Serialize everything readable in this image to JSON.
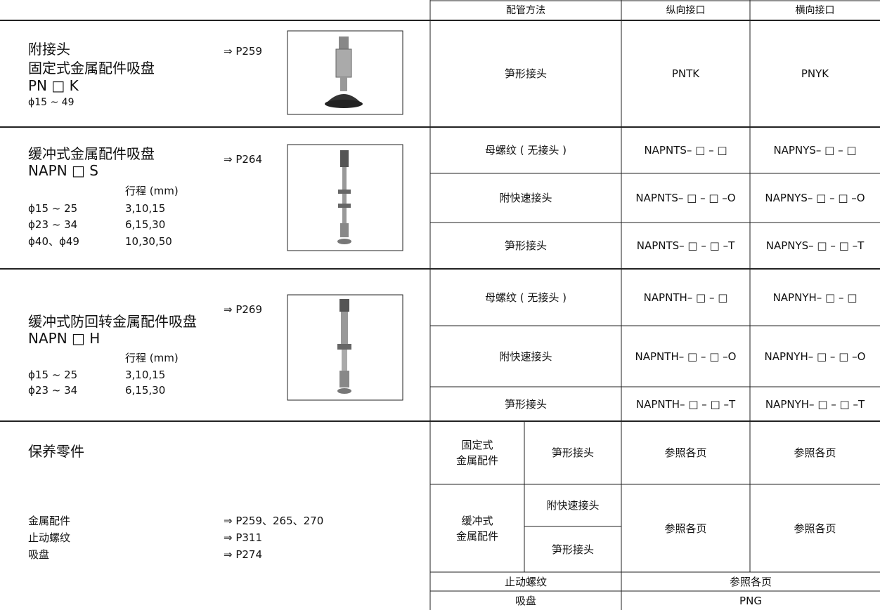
{
  "header": {
    "columns": [
      "配管方法",
      "纵向接口",
      "横向接口"
    ]
  },
  "sections": [
    {
      "title_lines": [
        "附接头",
        "固定式金属配件吸盘"
      ],
      "model": "PN □ K",
      "size": "ϕ15 ~ 49",
      "ref": "⇒ P259",
      "rows": [
        [
          "笋形接头",
          "PNTK",
          "PNYK"
        ]
      ]
    },
    {
      "title_lines": [
        "缓冲式金属配件吸盘"
      ],
      "model": "NAPN □ S",
      "stroke_header": "行程 (mm)",
      "strokes": [
        [
          "ϕ15 ~ 25",
          "3,10,15"
        ],
        [
          "ϕ23 ~ 34",
          "6,15,30"
        ],
        [
          "ϕ40、ϕ49",
          "10,30,50"
        ]
      ],
      "ref": "⇒ P264",
      "rows": [
        [
          "母螺纹 ( 无接头 )",
          "NAPNTS– □ – □",
          "NAPNYS– □ – □"
        ],
        [
          "附快速接头",
          "NAPNTS– □ – □ –O",
          "NAPNYS– □ – □ –O"
        ],
        [
          "笋形接头",
          "NAPNTS– □ – □ –T",
          "NAPNYS– □ – □ –T"
        ]
      ]
    },
    {
      "title_lines": [
        "缓冲式防回转金属配件吸盘"
      ],
      "model": "NAPN □ H",
      "stroke_header": "行程 (mm)",
      "strokes": [
        [
          "ϕ15 ~ 25",
          "3,10,15"
        ],
        [
          "ϕ23 ~ 34",
          "6,15,30"
        ]
      ],
      "ref": "⇒ P269",
      "rows": [
        [
          "母螺纹 ( 无接头 )",
          "NAPNTH– □ – □",
          "NAPNYH– □ – □"
        ],
        [
          "附快速接头",
          "NAPNTH– □ – □ –O",
          "NAPNYH– □ – □ –O"
        ],
        [
          "笋形接头",
          "NAPNTH– □ – □ –T",
          "NAPNYH– □ – □ –T"
        ]
      ]
    }
  ],
  "maintenance": {
    "title": "保养零件",
    "parts": [
      {
        "name": "金属配件",
        "ref": "⇒ P259、265、270"
      },
      {
        "name": "止动螺纹",
        "ref": "⇒ P311"
      },
      {
        "name": "吸盘",
        "ref": "⇒ P274"
      }
    ],
    "table": {
      "fixed": {
        "label": [
          "固定式",
          "金属配件"
        ],
        "connector": "笋形接头",
        "vertical": "参照各页",
        "horizontal": "参照各页"
      },
      "cushion": {
        "label": [
          "缓冲式",
          "金属配件"
        ],
        "connectors": [
          "附快速接头",
          "笋形接头"
        ],
        "vertical": "参照各页",
        "horizontal": "参照各页"
      },
      "stopper": {
        "label": "止动螺纹",
        "value": "参照各页"
      },
      "pad": {
        "label": "吸盘",
        "value": "PNG"
      }
    }
  }
}
